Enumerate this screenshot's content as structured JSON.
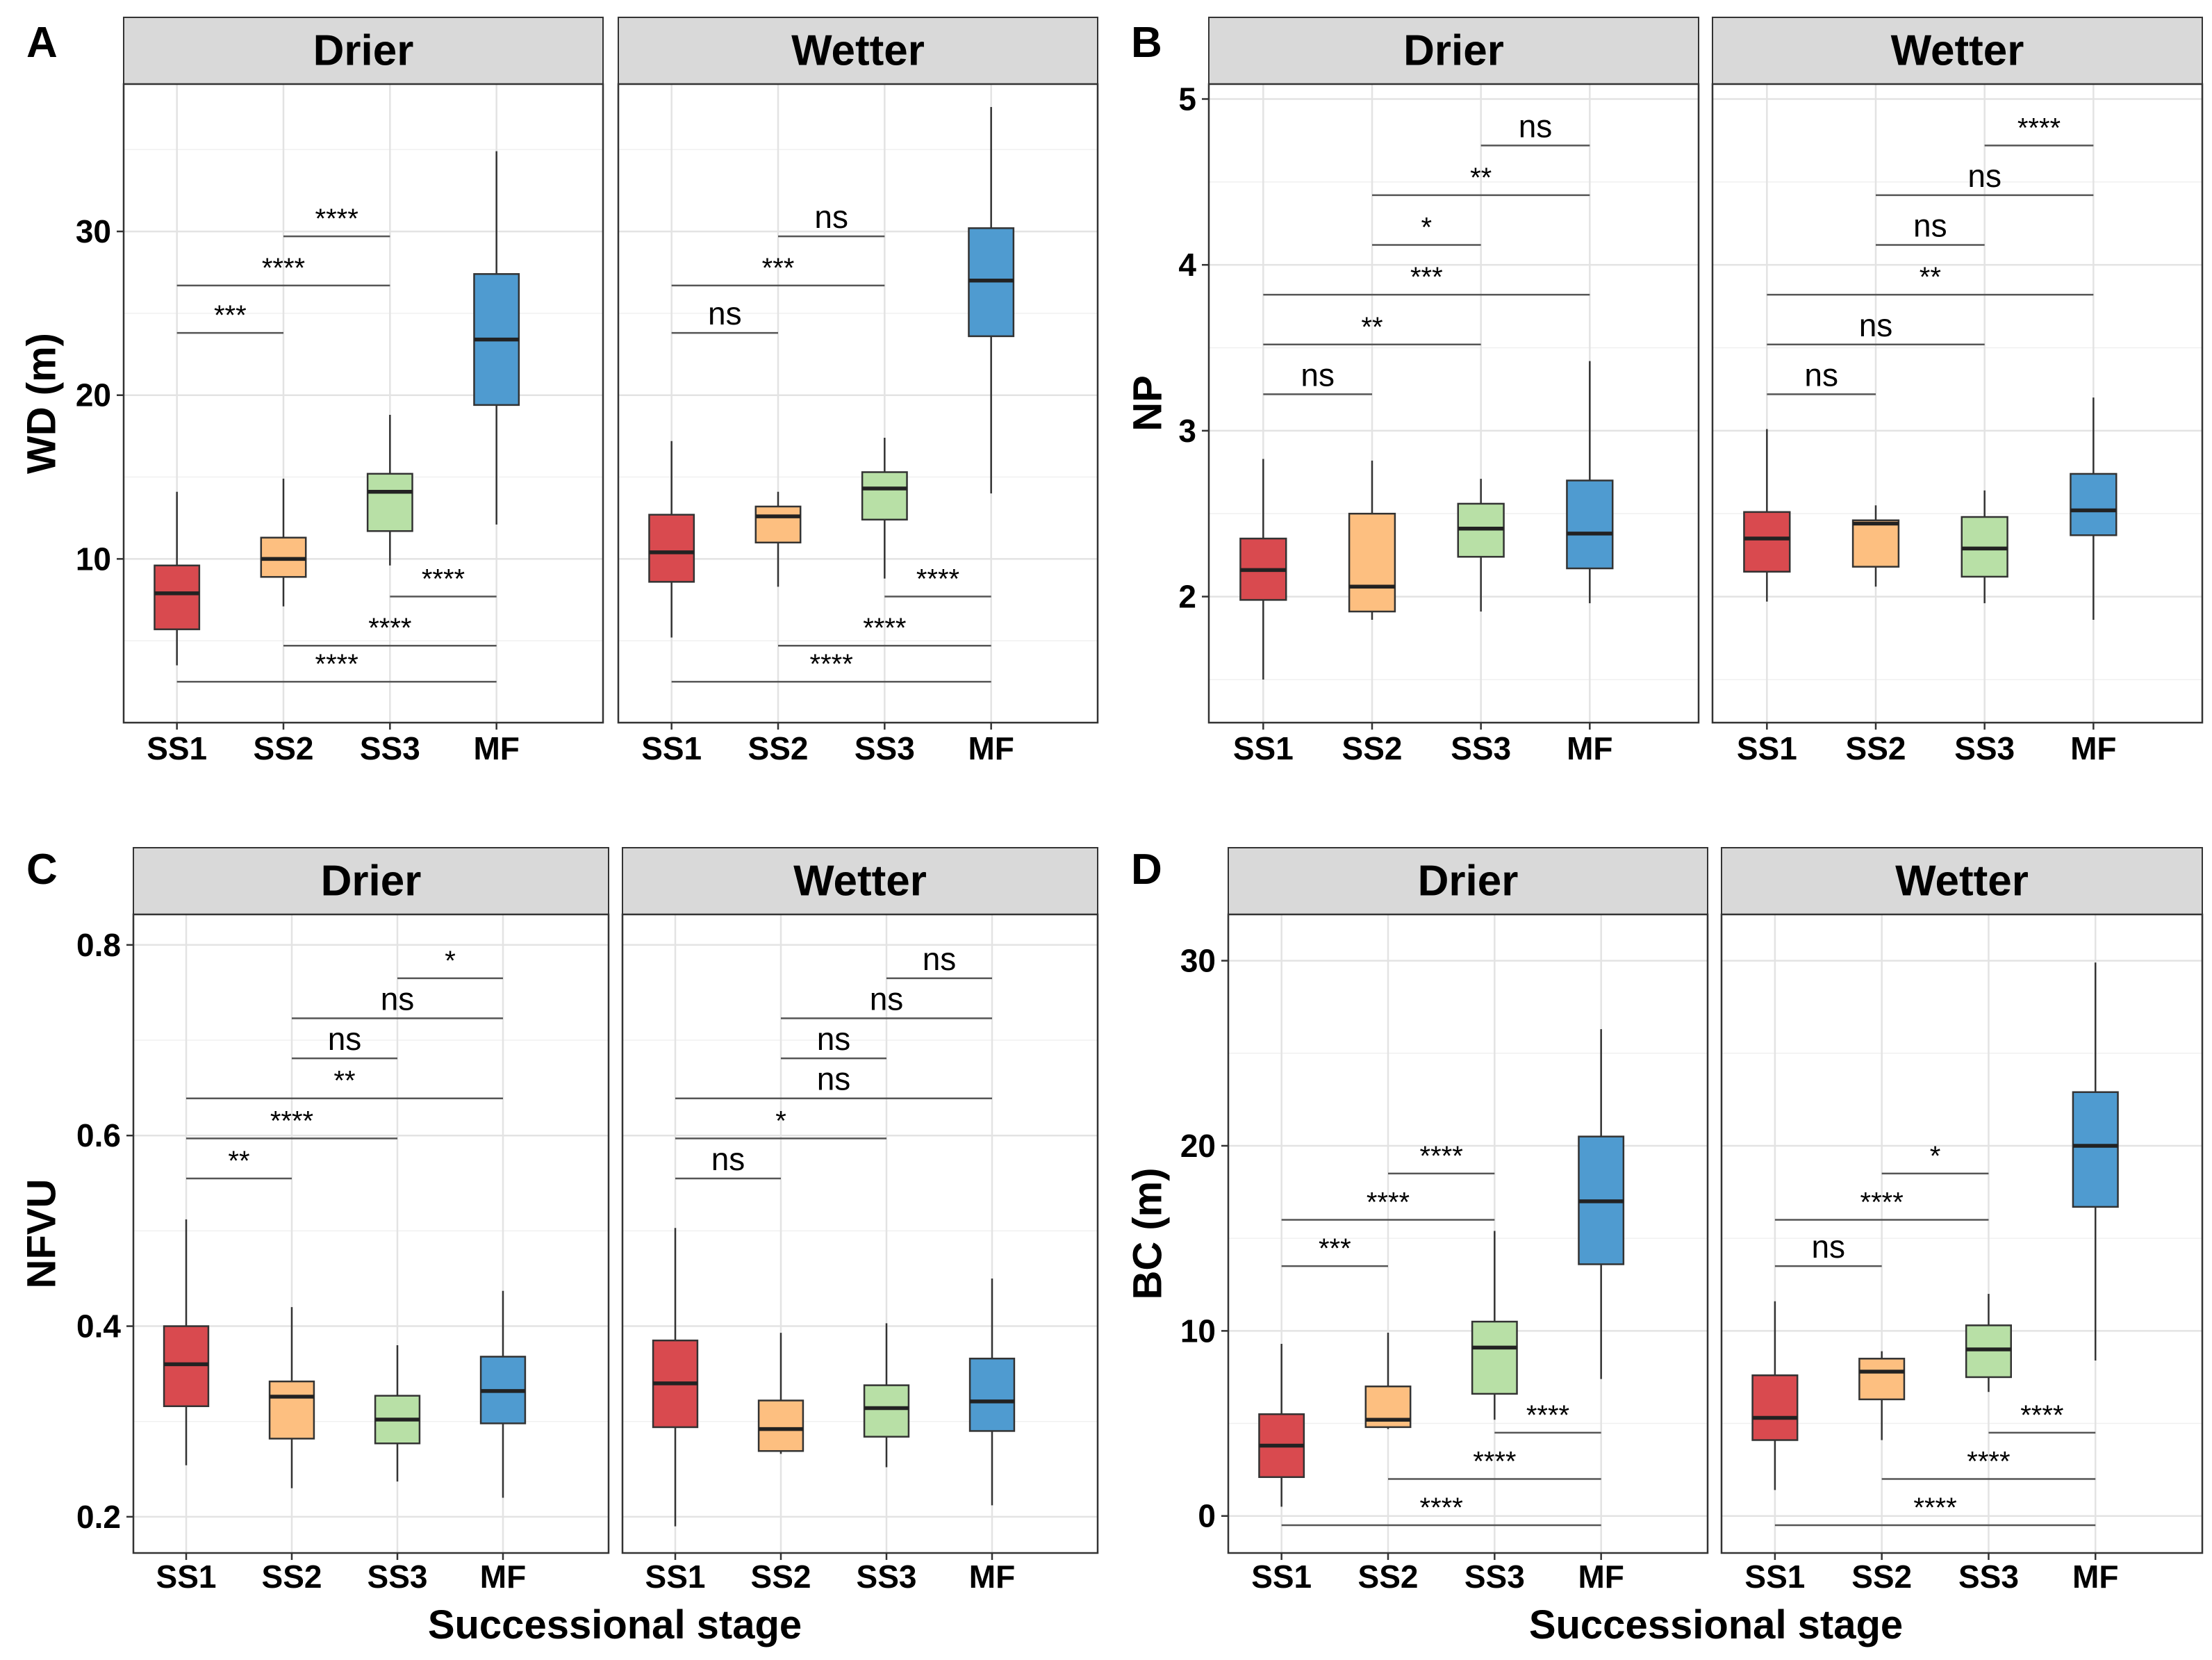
{
  "figure": {
    "x_title": "Successional stage",
    "stages": [
      "SS1",
      "SS2",
      "SS3",
      "MF"
    ],
    "facets": [
      "Drier",
      "Wetter"
    ],
    "colors": {
      "SS1": "#d94a4f",
      "SS2": "#fdbf80",
      "SS3": "#b8e0a6",
      "MF": "#4f9bd0"
    }
  },
  "chart_data": [
    {
      "type": "box",
      "panel": "A",
      "ylabel": "WD (m)",
      "ylim": [
        0,
        39
      ],
      "yticks": [
        10,
        20,
        30
      ],
      "facets": [
        {
          "name": "Drier",
          "boxes": [
            {
              "stage": "SS1",
              "min": 3.5,
              "q1": 5.7,
              "median": 7.9,
              "q3": 9.6,
              "max": 14.1
            },
            {
              "stage": "SS2",
              "min": 7.1,
              "q1": 8.9,
              "median": 10.0,
              "q3": 11.3,
              "max": 14.9
            },
            {
              "stage": "SS3",
              "min": 9.6,
              "q1": 11.7,
              "median": 14.1,
              "q3": 15.2,
              "max": 18.8
            },
            {
              "stage": "MF",
              "min": 12.1,
              "q1": 19.4,
              "median": 23.4,
              "q3": 27.4,
              "max": 34.9
            }
          ],
          "comparisons": [
            {
              "from": "SS2",
              "to": "SS3",
              "y": 29.7,
              "label": "****"
            },
            {
              "from": "SS1",
              "to": "SS3",
              "y": 26.7,
              "label": "****"
            },
            {
              "from": "SS1",
              "to": "SS2",
              "y": 23.8,
              "label": "***"
            },
            {
              "from": "SS3",
              "to": "MF",
              "y": 7.7,
              "label": "****"
            },
            {
              "from": "SS2",
              "to": "MF",
              "y": 4.7,
              "label": "****"
            },
            {
              "from": "SS1",
              "to": "MF",
              "y": 2.5,
              "label": "****"
            }
          ]
        },
        {
          "name": "Wetter",
          "boxes": [
            {
              "stage": "SS1",
              "min": 5.2,
              "q1": 8.6,
              "median": 10.4,
              "q3": 12.7,
              "max": 17.2
            },
            {
              "stage": "SS2",
              "min": 8.3,
              "q1": 11.0,
              "median": 12.6,
              "q3": 13.2,
              "max": 14.1
            },
            {
              "stage": "SS3",
              "min": 8.8,
              "q1": 12.4,
              "median": 14.3,
              "q3": 15.3,
              "max": 17.4
            },
            {
              "stage": "MF",
              "min": 14.0,
              "q1": 23.6,
              "median": 27.0,
              "q3": 30.2,
              "max": 37.6
            }
          ],
          "comparisons": [
            {
              "from": "SS2",
              "to": "SS3",
              "y": 29.7,
              "label": "ns"
            },
            {
              "from": "SS1",
              "to": "SS3",
              "y": 26.7,
              "label": "***"
            },
            {
              "from": "SS1",
              "to": "SS2",
              "y": 23.8,
              "label": "ns"
            },
            {
              "from": "SS3",
              "to": "MF",
              "y": 7.7,
              "label": "****"
            },
            {
              "from": "SS2",
              "to": "MF",
              "y": 4.7,
              "label": "****"
            },
            {
              "from": "SS1",
              "to": "MF",
              "y": 2.5,
              "label": "****"
            }
          ]
        }
      ]
    },
    {
      "type": "box",
      "panel": "B",
      "ylabel": "NP",
      "ylim": [
        1.24,
        5.09
      ],
      "yticks": [
        2,
        3,
        4,
        5
      ],
      "facets": [
        {
          "name": "Drier",
          "boxes": [
            {
              "stage": "SS1",
              "min": 1.5,
              "q1": 1.98,
              "median": 2.16,
              "q3": 2.35,
              "max": 2.83
            },
            {
              "stage": "SS2",
              "min": 1.86,
              "q1": 1.91,
              "median": 2.06,
              "q3": 2.5,
              "max": 2.82
            },
            {
              "stage": "SS3",
              "min": 1.91,
              "q1": 2.24,
              "median": 2.41,
              "q3": 2.56,
              "max": 2.71
            },
            {
              "stage": "MF",
              "min": 1.96,
              "q1": 2.17,
              "median": 2.38,
              "q3": 2.7,
              "max": 3.42
            }
          ],
          "comparisons": [
            {
              "from": "SS3",
              "to": "MF",
              "y": 4.72,
              "label": "ns"
            },
            {
              "from": "SS2",
              "to": "MF",
              "y": 4.42,
              "label": "**"
            },
            {
              "from": "SS2",
              "to": "SS3",
              "y": 4.12,
              "label": "*"
            },
            {
              "from": "SS1",
              "to": "MF",
              "y": 3.82,
              "label": "***"
            },
            {
              "from": "SS1",
              "to": "SS3",
              "y": 3.52,
              "label": "**"
            },
            {
              "from": "SS1",
              "to": "SS2",
              "y": 3.22,
              "label": "ns"
            }
          ]
        },
        {
          "name": "Wetter",
          "boxes": [
            {
              "stage": "SS1",
              "min": 1.97,
              "q1": 2.15,
              "median": 2.35,
              "q3": 2.51,
              "max": 3.01
            },
            {
              "stage": "SS2",
              "min": 2.06,
              "q1": 2.18,
              "median": 2.44,
              "q3": 2.46,
              "max": 2.55
            },
            {
              "stage": "SS3",
              "min": 1.96,
              "q1": 2.12,
              "median": 2.29,
              "q3": 2.48,
              "max": 2.64
            },
            {
              "stage": "MF",
              "min": 1.86,
              "q1": 2.37,
              "median": 2.52,
              "q3": 2.74,
              "max": 3.2
            }
          ],
          "comparisons": [
            {
              "from": "SS3",
              "to": "MF",
              "y": 4.72,
              "label": "****"
            },
            {
              "from": "SS2",
              "to": "MF",
              "y": 4.42,
              "label": "ns"
            },
            {
              "from": "SS2",
              "to": "SS3",
              "y": 4.12,
              "label": "ns"
            },
            {
              "from": "SS1",
              "to": "MF",
              "y": 3.82,
              "label": "**"
            },
            {
              "from": "SS1",
              "to": "SS3",
              "y": 3.52,
              "label": "ns"
            },
            {
              "from": "SS1",
              "to": "SS2",
              "y": 3.22,
              "label": "ns"
            }
          ]
        }
      ]
    },
    {
      "type": "box",
      "panel": "C",
      "ylabel": "NFVU",
      "ylim": [
        0.162,
        0.832
      ],
      "yticks": [
        0.2,
        0.4,
        0.6,
        0.8
      ],
      "facets": [
        {
          "name": "Drier",
          "boxes": [
            {
              "stage": "SS1",
              "min": 0.254,
              "q1": 0.316,
              "median": 0.36,
              "q3": 0.4,
              "max": 0.512
            },
            {
              "stage": "SS2",
              "min": 0.23,
              "q1": 0.282,
              "median": 0.326,
              "q3": 0.342,
              "max": 0.42
            },
            {
              "stage": "SS3",
              "min": 0.237,
              "q1": 0.277,
              "median": 0.302,
              "q3": 0.327,
              "max": 0.38
            },
            {
              "stage": "MF",
              "min": 0.22,
              "q1": 0.298,
              "median": 0.332,
              "q3": 0.368,
              "max": 0.437
            }
          ],
          "comparisons": [
            {
              "from": "SS3",
              "to": "MF",
              "y": 0.765,
              "label": "*"
            },
            {
              "from": "SS2",
              "to": "MF",
              "y": 0.723,
              "label": "ns"
            },
            {
              "from": "SS2",
              "to": "SS3",
              "y": 0.681,
              "label": "ns"
            },
            {
              "from": "SS1",
              "to": "MF",
              "y": 0.639,
              "label": "**"
            },
            {
              "from": "SS1",
              "to": "SS3",
              "y": 0.597,
              "label": "****"
            },
            {
              "from": "SS1",
              "to": "SS2",
              "y": 0.555,
              "label": "**"
            }
          ]
        },
        {
          "name": "Wetter",
          "boxes": [
            {
              "stage": "SS1",
              "min": 0.19,
              "q1": 0.294,
              "median": 0.34,
              "q3": 0.385,
              "max": 0.503
            },
            {
              "stage": "SS2",
              "min": 0.266,
              "q1": 0.269,
              "median": 0.292,
              "q3": 0.322,
              "max": 0.393
            },
            {
              "stage": "SS3",
              "min": 0.252,
              "q1": 0.284,
              "median": 0.314,
              "q3": 0.338,
              "max": 0.403
            },
            {
              "stage": "MF",
              "min": 0.212,
              "q1": 0.29,
              "median": 0.321,
              "q3": 0.366,
              "max": 0.45
            }
          ],
          "comparisons": [
            {
              "from": "SS3",
              "to": "MF",
              "y": 0.765,
              "label": "ns"
            },
            {
              "from": "SS2",
              "to": "MF",
              "y": 0.723,
              "label": "ns"
            },
            {
              "from": "SS2",
              "to": "SS3",
              "y": 0.681,
              "label": "ns"
            },
            {
              "from": "SS1",
              "to": "MF",
              "y": 0.639,
              "label": "ns"
            },
            {
              "from": "SS1",
              "to": "SS3",
              "y": 0.597,
              "label": "*"
            },
            {
              "from": "SS1",
              "to": "SS2",
              "y": 0.555,
              "label": "ns"
            }
          ]
        }
      ]
    },
    {
      "type": "box",
      "panel": "D",
      "ylabel": "BC (m)",
      "ylim": [
        -2.0,
        32.5
      ],
      "yticks": [
        0,
        10,
        20,
        30
      ],
      "facets": [
        {
          "name": "Drier",
          "boxes": [
            {
              "stage": "SS1",
              "min": 0.5,
              "q1": 2.1,
              "median": 3.8,
              "q3": 5.5,
              "max": 9.3
            },
            {
              "stage": "SS2",
              "min": 4.7,
              "q1": 4.8,
              "median": 5.2,
              "q3": 7.0,
              "max": 9.9
            },
            {
              "stage": "SS3",
              "min": 5.2,
              "q1": 6.6,
              "median": 9.1,
              "q3": 10.5,
              "max": 15.4
            },
            {
              "stage": "MF",
              "min": 7.4,
              "q1": 13.6,
              "median": 17.0,
              "q3": 20.5,
              "max": 26.3
            }
          ],
          "comparisons": [
            {
              "from": "SS2",
              "to": "SS3",
              "y": 18.5,
              "label": "****"
            },
            {
              "from": "SS1",
              "to": "SS3",
              "y": 16.0,
              "label": "****"
            },
            {
              "from": "SS1",
              "to": "SS2",
              "y": 13.5,
              "label": "***"
            },
            {
              "from": "SS3",
              "to": "MF",
              "y": 4.5,
              "label": "****"
            },
            {
              "from": "SS2",
              "to": "MF",
              "y": 2.0,
              "label": "****"
            },
            {
              "from": "SS1",
              "to": "MF",
              "y": -0.5,
              "label": "****"
            }
          ]
        },
        {
          "name": "Wetter",
          "boxes": [
            {
              "stage": "SS1",
              "min": 1.4,
              "q1": 4.1,
              "median": 5.3,
              "q3": 7.6,
              "max": 11.6
            },
            {
              "stage": "SS2",
              "min": 4.1,
              "q1": 6.3,
              "median": 7.8,
              "q3": 8.5,
              "max": 8.9
            },
            {
              "stage": "SS3",
              "min": 6.7,
              "q1": 7.5,
              "median": 9.0,
              "q3": 10.3,
              "max": 12.0
            },
            {
              "stage": "MF",
              "min": 8.4,
              "q1": 16.7,
              "median": 20.0,
              "q3": 22.9,
              "max": 29.9
            }
          ],
          "comparisons": [
            {
              "from": "SS2",
              "to": "SS3",
              "y": 18.5,
              "label": "*"
            },
            {
              "from": "SS1",
              "to": "SS3",
              "y": 16.0,
              "label": "****"
            },
            {
              "from": "SS1",
              "to": "SS2",
              "y": 13.5,
              "label": "ns"
            },
            {
              "from": "SS3",
              "to": "MF",
              "y": 4.5,
              "label": "****"
            },
            {
              "from": "SS2",
              "to": "MF",
              "y": 2.0,
              "label": "****"
            },
            {
              "from": "SS1",
              "to": "MF",
              "y": -0.5,
              "label": "****"
            }
          ]
        }
      ]
    }
  ]
}
